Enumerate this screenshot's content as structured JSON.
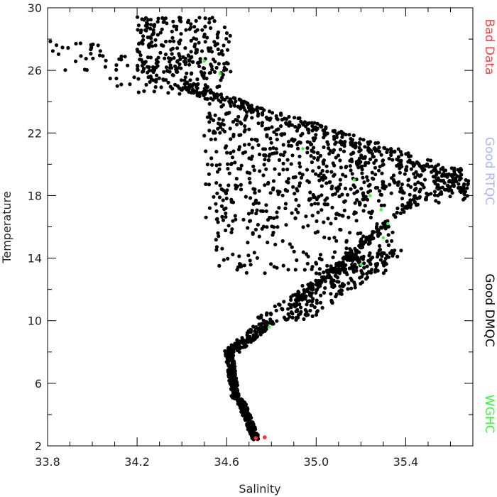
{
  "chart_data": {
    "type": "scatter",
    "title": "",
    "xlabel": "Salinity",
    "ylabel": "Temperature",
    "xlim": [
      33.8,
      35.7
    ],
    "ylim": [
      2,
      30
    ],
    "x_ticks": [
      33.8,
      34.2,
      34.6,
      35.0,
      35.4
    ],
    "x_tick_labels": [
      "33.8",
      "34.2",
      "34.6",
      "35.0",
      "35.4"
    ],
    "y_ticks": [
      2,
      6,
      10,
      14,
      18,
      22,
      26,
      30
    ],
    "y_tick_labels": [
      "2",
      "6",
      "10",
      "14",
      "18",
      "22",
      "26",
      "30"
    ],
    "grid": false,
    "legend_placement": "right",
    "legend": [
      {
        "label": "Bad Data",
        "color": "#ff4040"
      },
      {
        "label": "Good RTQC",
        "color": "#aab4ff"
      },
      {
        "label": "Good DMQC",
        "color": "#000000"
      },
      {
        "label": "WGHC",
        "color": "#33ff33"
      }
    ],
    "series": [
      {
        "name": "Bad Data",
        "color": "#ff3030",
        "points": [
          [
            34.73,
            2.5
          ],
          [
            34.77,
            2.55
          ]
        ]
      },
      {
        "name": "WGHC",
        "color": "#33ff33",
        "points": [
          [
            34.5,
            26.6
          ],
          [
            34.57,
            25.8
          ],
          [
            34.94,
            21.0
          ],
          [
            35.17,
            19.0
          ],
          [
            35.24,
            18.0
          ],
          [
            35.29,
            17.1
          ],
          [
            35.32,
            16.2
          ],
          [
            35.3,
            15.3
          ],
          [
            35.2,
            13.6
          ],
          [
            34.79,
            9.6
          ]
        ]
      },
      {
        "name": "Good DMQC",
        "color": "#000000",
        "point_count": 2000,
        "clusters": [
          {
            "salinity_range": [
              34.2,
              34.62
            ],
            "temperature_range": [
              24.5,
              29.4
            ],
            "count": 260
          },
          {
            "salinity_range": [
              33.8,
              34.05
            ],
            "temperature_range": [
              26.0,
              27.9
            ],
            "count": 25
          },
          {
            "salinity_range": [
              34.05,
              34.5
            ],
            "temperature_range": [
              24.8,
              27.0
            ],
            "count": 60
          },
          {
            "salinity_range": [
              34.5,
              35.68
            ],
            "temperature_range": [
              16.5,
              24.5
            ],
            "count": 600
          },
          {
            "salinity_range": [
              34.55,
              35.35
            ],
            "temperature_range": [
              13.0,
              19.0
            ],
            "count": 260
          },
          {
            "salinity_range": [
              34.78,
              35.36
            ],
            "temperature_range": [
              10.0,
              14.5
            ],
            "count": 260
          },
          {
            "salinity_range": [
              34.64,
              34.85
            ],
            "temperature_range": [
              8.0,
              10.0
            ],
            "count": 120
          },
          {
            "salinity_range": [
              34.59,
              34.7
            ],
            "temperature_range": [
              5.0,
              8.0
            ],
            "count": 180
          },
          {
            "salinity_range": [
              34.62,
              34.75
            ],
            "temperature_range": [
              2.4,
              5.0
            ],
            "count": 180
          }
        ]
      }
    ]
  }
}
